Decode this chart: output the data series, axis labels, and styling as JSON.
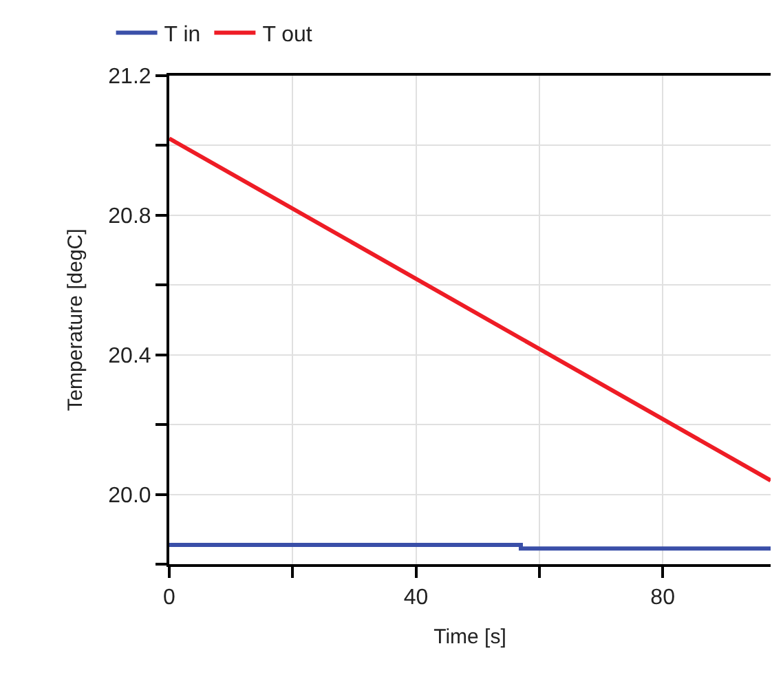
{
  "chart_data": {
    "type": "line",
    "xlabel": "Time [s]",
    "ylabel": "Temperature [degC]",
    "xlim": [
      0,
      97.5
    ],
    "xticks": [
      0,
      {
        "value": 20,
        "label": null
      },
      40,
      {
        "value": 60,
        "label": null
      },
      80
    ],
    "ylim": [
      19.8,
      21.2
    ],
    "yticks": [
      {
        "value": 19.8,
        "label": null
      },
      "20.0",
      {
        "value": 20.2,
        "label": null
      },
      20.4,
      {
        "value": 20.6,
        "label": null
      },
      20.8,
      {
        "value": 21.0,
        "label": null
      },
      21.2
    ],
    "grid": true,
    "legend": "top left",
    "series": [
      {
        "name": "T in",
        "color": "#3a4fa8",
        "type": "step",
        "x": [
          0,
          57,
          97.5
        ],
        "values": [
          19.855,
          19.845,
          19.845
        ]
      },
      {
        "name": "T out",
        "color": "#ee1c25",
        "x": [
          0,
          97.5
        ],
        "values": [
          21.02,
          20.04
        ]
      }
    ]
  }
}
